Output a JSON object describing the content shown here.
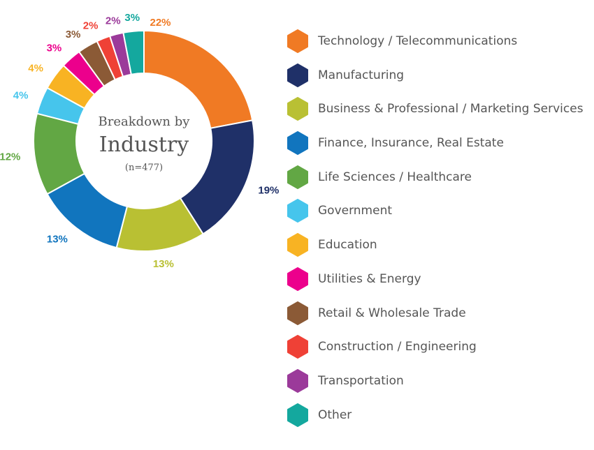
{
  "chart_data": {
    "type": "pie",
    "variant": "donut",
    "center_text": {
      "line1": "Breakdown by",
      "line2": "Industry",
      "line3": "(n=477)"
    },
    "slices": [
      {
        "name": "Technology / Telecommunications",
        "value": 22,
        "label": "22%",
        "color": "#F07A24"
      },
      {
        "name": "Manufacturing",
        "value": 19,
        "label": "19%",
        "color": "#1F3068"
      },
      {
        "name": "Business & Professional / Marketing Services",
        "value": 13,
        "label": "13%",
        "color": "#B9C033"
      },
      {
        "name": "Finance, Insurance, Real Estate",
        "value": 13,
        "label": "13%",
        "color": "#1175BE"
      },
      {
        "name": "Life Sciences / Healthcare",
        "value": 12,
        "label": "12%",
        "color": "#62A744"
      },
      {
        "name": "Government",
        "value": 4,
        "label": "4%",
        "color": "#46C5EC"
      },
      {
        "name": "Education",
        "value": 4,
        "label": "4%",
        "color": "#F8B323"
      },
      {
        "name": "Utilities & Energy",
        "value": 3,
        "label": "3%",
        "color": "#EC008C"
      },
      {
        "name": "Retail & Wholesale Trade",
        "value": 3,
        "label": "3%",
        "color": "#8B5A36"
      },
      {
        "name": "Construction / Engineering",
        "value": 2,
        "label": "2%",
        "color": "#EF4136"
      },
      {
        "name": "Transportation",
        "value": 2,
        "label": "2%",
        "color": "#9B3A9A"
      },
      {
        "name": "Other",
        "value": 3,
        "label": "3%",
        "color": "#14A89E"
      }
    ],
    "legend_position": "right"
  }
}
